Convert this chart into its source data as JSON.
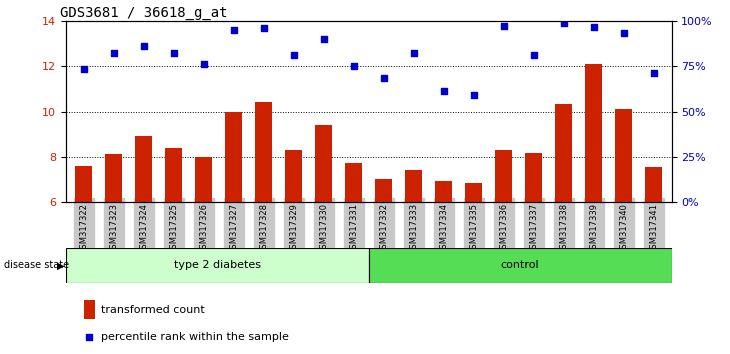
{
  "title": "GDS3681 / 36618_g_at",
  "samples": [
    "GSM317322",
    "GSM317323",
    "GSM317324",
    "GSM317325",
    "GSM317326",
    "GSM317327",
    "GSM317328",
    "GSM317329",
    "GSM317330",
    "GSM317331",
    "GSM317332",
    "GSM317333",
    "GSM317334",
    "GSM317335",
    "GSM317336",
    "GSM317337",
    "GSM317338",
    "GSM317339",
    "GSM317340",
    "GSM317341"
  ],
  "bar_values": [
    7.6,
    8.1,
    8.9,
    8.4,
    8.0,
    10.0,
    10.4,
    8.3,
    9.4,
    7.7,
    7.0,
    7.4,
    6.9,
    6.85,
    8.3,
    8.15,
    10.35,
    12.1,
    10.1,
    7.55
  ],
  "dot_values": [
    11.9,
    12.6,
    12.9,
    12.6,
    12.1,
    13.6,
    13.7,
    12.5,
    13.2,
    12.0,
    11.5,
    12.6,
    10.9,
    10.75,
    13.8,
    12.5,
    13.9,
    13.75,
    13.5,
    11.7
  ],
  "ylim_left": [
    6,
    14
  ],
  "ylim_right": [
    0,
    100
  ],
  "yticks_left": [
    6,
    8,
    10,
    12,
    14
  ],
  "yticks_right": [
    0,
    25,
    50,
    75,
    100
  ],
  "ytick_labels_right": [
    "0%",
    "25%",
    "50%",
    "75%",
    "100%"
  ],
  "group1_label": "type 2 diabetes",
  "group2_label": "control",
  "group1_count": 10,
  "group2_count": 10,
  "bar_color": "#cc2200",
  "dot_color": "#0000cc",
  "sample_bg_color": "#c8c8c8",
  "group1_bg": "#ccffcc",
  "group2_bg": "#55dd55",
  "legend_bar_label": "transformed count",
  "legend_dot_label": "percentile rank within the sample",
  "axis_label_color_left": "#cc2200",
  "axis_label_color_right": "#0000cc",
  "bar_width": 0.55,
  "grid_lines_at": [
    8,
    10,
    12
  ]
}
